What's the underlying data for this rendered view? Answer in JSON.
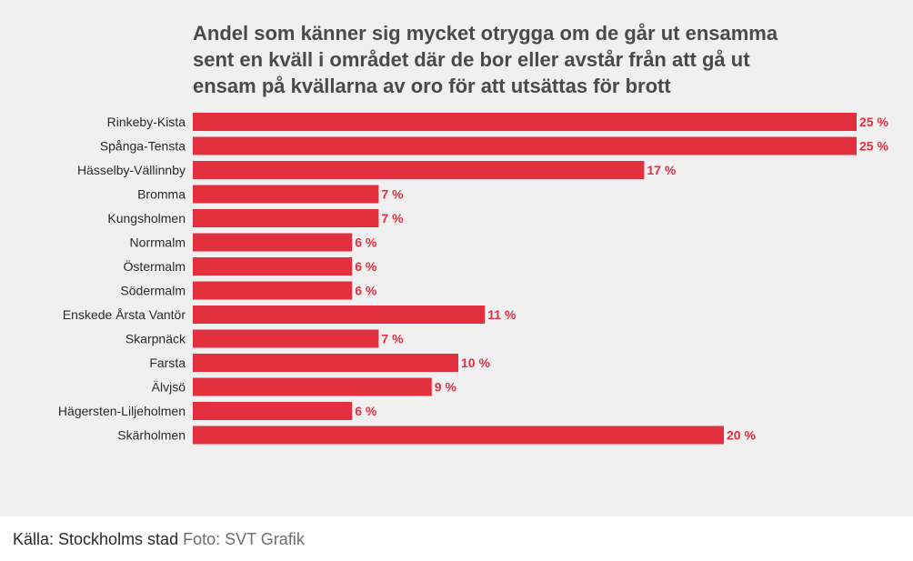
{
  "chart_data": {
    "type": "bar",
    "orientation": "horizontal",
    "title": "Andel som känner sig mycket otrygga om de går ut ensamma sent en kväll i området där de bor eller avstår från att gå ut ensam på kvällarna av oro för att utsättas för brott",
    "categories": [
      "Rinkeby-Kista",
      "Spånga-Tensta",
      "Hässelby-Vällinnby",
      "Bromma",
      "Kungsholmen",
      "Norrmalm",
      "Östermalm",
      "Södermalm",
      "Enskede Årsta Vantör",
      "Skarpnäck",
      "Farsta",
      "Älvjsö",
      "Hägersten-Liljeholmen",
      "Skärholmen"
    ],
    "values": [
      25,
      25,
      17,
      7,
      7,
      6,
      6,
      6,
      11,
      7,
      10,
      9,
      6,
      20
    ],
    "value_labels": [
      "25 %",
      "25 %",
      "17 %",
      "7 %",
      "7 %",
      "6 %",
      "6 %",
      "6 %",
      "11 %",
      "7 %",
      "10 %",
      "9 %",
      "6 %",
      "20 %"
    ],
    "unit": "%",
    "xlim": [
      0,
      25
    ],
    "grid": false,
    "legend": "none",
    "bar_color": "#e3303f",
    "label_color": "#e3303f"
  },
  "caption": {
    "source": "Källa: Stockholms stad",
    "credit": "Foto: SVT Grafik"
  },
  "colors": {
    "background": "#f0f0f0",
    "title": "#4a4a4a",
    "category_text": "#2a2a2a"
  }
}
